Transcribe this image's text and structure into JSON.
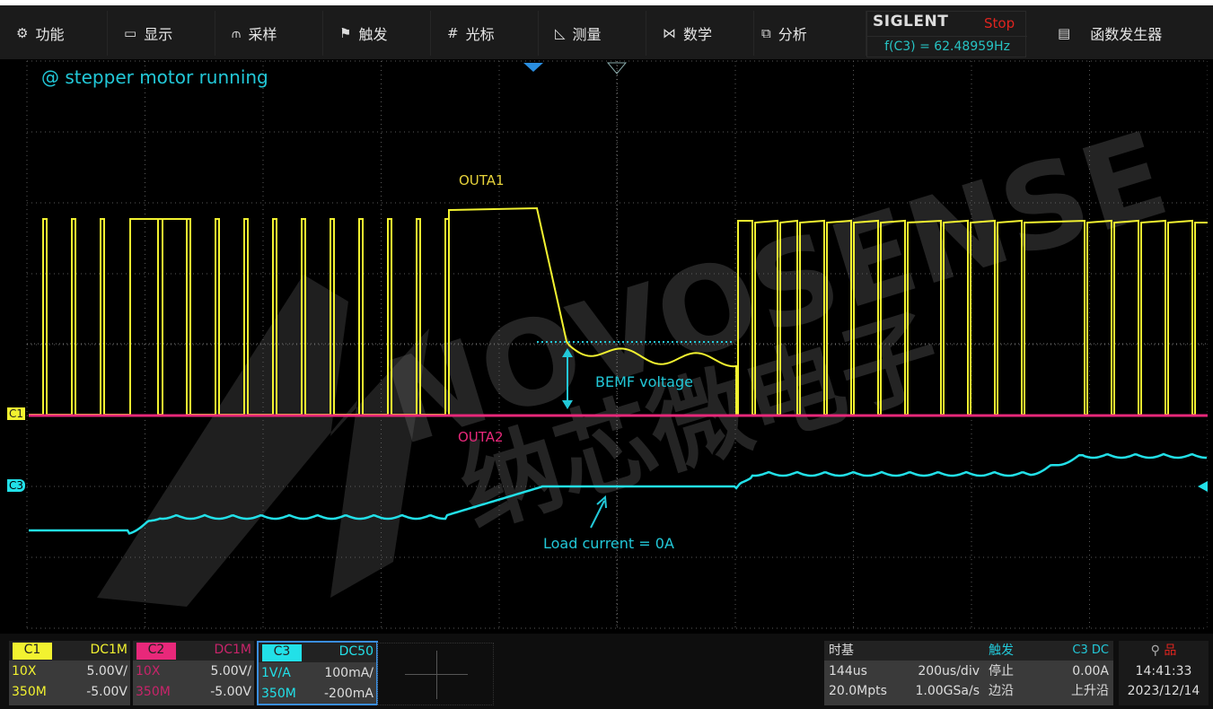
{
  "menu": [
    {
      "icon": "gear-icon",
      "glyph": "⚙",
      "label": "功能"
    },
    {
      "icon": "monitor-icon",
      "glyph": "▭",
      "label": "显示"
    },
    {
      "icon": "acquire-icon",
      "glyph": "⫙",
      "label": "采样"
    },
    {
      "icon": "flag-icon",
      "glyph": "⚑",
      "label": "触发"
    },
    {
      "icon": "cursor-grid-icon",
      "glyph": "#",
      "label": "光标"
    },
    {
      "icon": "measure-icon",
      "glyph": "◺",
      "label": "测量"
    },
    {
      "icon": "math-icon",
      "glyph": "⋈",
      "label": "数学"
    },
    {
      "icon": "analysis-icon",
      "glyph": "⧉",
      "label": "分析"
    }
  ],
  "brand": {
    "logo": "SIGLENT",
    "status": "Stop",
    "frequency": "f(C3) = 62.48959Hz"
  },
  "func_gen": {
    "icon": "document-icon",
    "glyph": "▤",
    "label": "函数发生器"
  },
  "annotations": {
    "title": "@ stepper motor running",
    "outa1": "OUTA1",
    "bemf": "BEMF voltage",
    "outa2": "OUTA2",
    "load": "Load current  = 0A"
  },
  "markers": {
    "c1": "C1",
    "c3": "C3"
  },
  "watermark": {
    "en": "NOVOSENSE",
    "cn": "纳芯微电子"
  },
  "colors": {
    "c1": "#f2f230",
    "c2": "#e8287a",
    "c3": "#22e0e8",
    "grid": "#5a5a5a"
  },
  "channels": [
    {
      "name": "C1",
      "coupling": "DC1M",
      "probe": "10X",
      "scale": "5.00V/",
      "bw": "350M",
      "offset": "-5.00V",
      "color": "#f2f230"
    },
    {
      "name": "C2",
      "coupling": "DC1M",
      "probe": "10X",
      "scale": "5.00V/",
      "bw": "350M",
      "offset": "-5.00V",
      "color": "#e8287a"
    },
    {
      "name": "C3",
      "coupling": "DC50",
      "probe": "1V/A",
      "scale": "100mA/",
      "bw": "350M",
      "offset": "-200mA",
      "color": "#22e0e8"
    }
  ],
  "timebase": {
    "title": "时基",
    "delay": "144us",
    "scale": "200us/div",
    "points": "20.0Mpts",
    "rate": "1.00GSa/s"
  },
  "trigger": {
    "title": "触发",
    "source": "C3 DC",
    "state": "停止",
    "level": "0.00A",
    "type": "边沿",
    "slope": "上升沿"
  },
  "status": {
    "time": "14:41:33",
    "date": "2023/12/14"
  }
}
